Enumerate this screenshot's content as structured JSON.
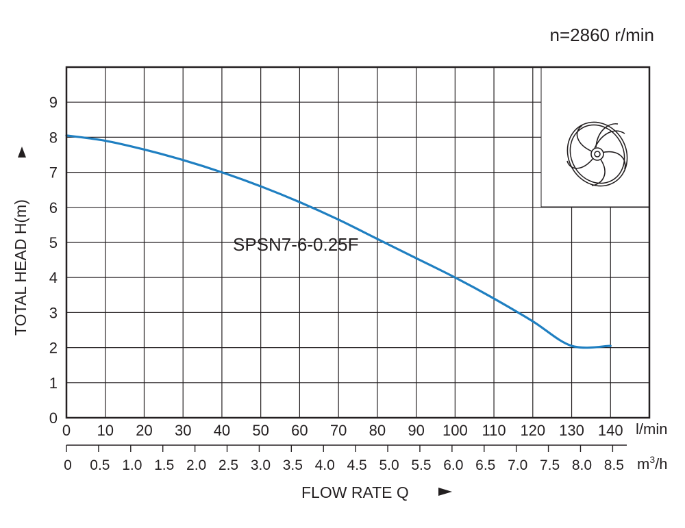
{
  "chart_data": {
    "type": "line",
    "speed_label": "n=2860 r/min",
    "ylabel": "TOTAL HEAD H(m)",
    "xlabel": "FLOW RATE Q",
    "x_unit_primary": "l/min",
    "x_unit_secondary_base": "m",
    "x_unit_secondary_sup": "3",
    "x_unit_secondary_tail": "/h",
    "xlim": [
      0,
      150
    ],
    "ylim": [
      0,
      10
    ],
    "grid": true,
    "y_ticks": [
      "0",
      "1",
      "2",
      "3",
      "4",
      "5",
      "6",
      "7",
      "8",
      "9"
    ],
    "x_ticks_lmin": [
      "0",
      "10",
      "20",
      "30",
      "40",
      "50",
      "60",
      "70",
      "80",
      "90",
      "100",
      "110",
      "120",
      "130",
      "140"
    ],
    "x_ticks_m3h": [
      "0",
      "0.5",
      "1.0",
      "1.5",
      "2.0",
      "2.5",
      "3.0",
      "3.5",
      "4.0",
      "4.5",
      "5.0",
      "5.5",
      "6.0",
      "6.5",
      "7.0",
      "7.5",
      "8.0",
      "8.5"
    ],
    "series": [
      {
        "name": "SPSN7-6-0.25F",
        "color": "#1f7fc1",
        "x": [
          0,
          10,
          20,
          30,
          40,
          50,
          60,
          70,
          80,
          90,
          100,
          110,
          120,
          130,
          140
        ],
        "y": [
          8.05,
          7.9,
          7.65,
          7.35,
          7.0,
          6.6,
          6.15,
          5.65,
          5.1,
          4.55,
          4.0,
          3.4,
          2.75,
          2.05,
          2.05
        ]
      }
    ],
    "inset": "impeller-icon"
  }
}
